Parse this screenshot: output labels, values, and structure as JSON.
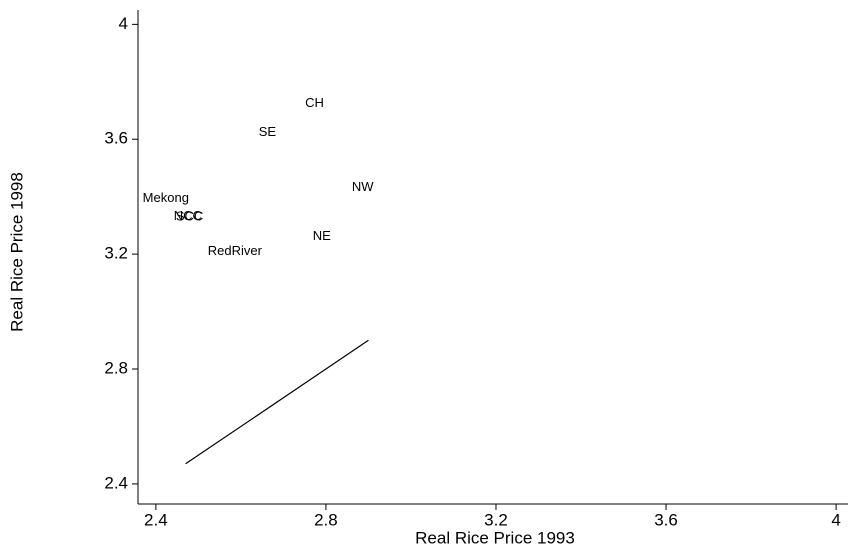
{
  "chart_data": {
    "type": "scatter",
    "x_label": "Real Rice Price 1993",
    "y_label": "Real Rice Price 1998",
    "points": {
      "labels": [
        "CH",
        "SE",
        "NW",
        "Mekong",
        "NCC",
        "SCC",
        "NE",
        "RedRiver"
      ],
      "x": [
        2.751,
        2.642,
        2.861,
        2.369,
        2.442,
        2.447,
        2.769,
        2.522
      ],
      "y": [
        3.725,
        3.624,
        3.432,
        3.394,
        3.331,
        3.329,
        3.261,
        3.209
      ]
    },
    "line": {
      "x": [
        2.47,
        2.9
      ],
      "y": [
        2.47,
        2.9
      ],
      "color": "#000000"
    },
    "xlim": [
      2.358,
      4.028
    ],
    "ylim": [
      2.33,
      4.05
    ],
    "xticks": [
      2.4,
      2.8,
      3.2,
      3.6,
      4
    ],
    "yticks": [
      2.4,
      2.8,
      3.2,
      3.6,
      4
    ]
  }
}
